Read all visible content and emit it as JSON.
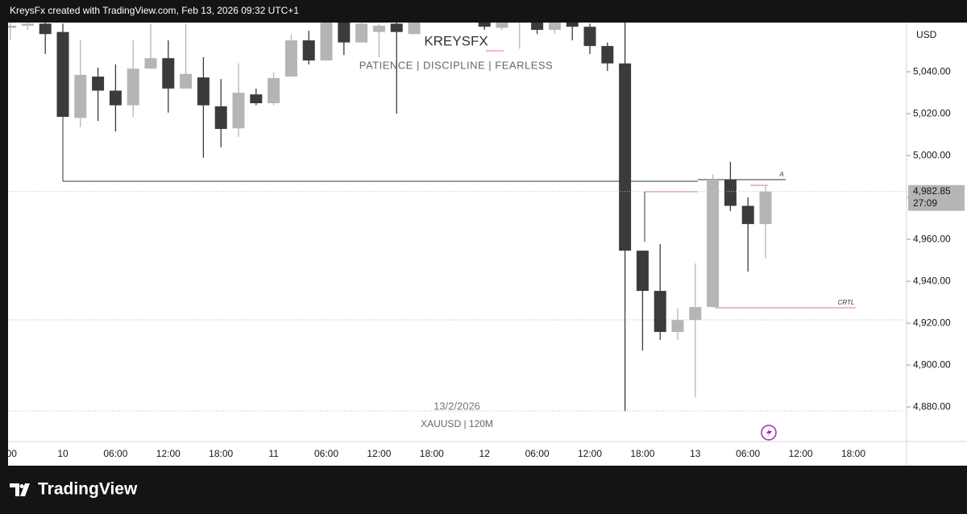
{
  "header": {
    "text": "KreysFx created with TradingView.com, Feb 13, 2026 09:32 UTC+1"
  },
  "footer": {
    "brand": "TradingView"
  },
  "chart_data": {
    "type": "candlestick",
    "title": "KREYSFX",
    "subtitle": "PATIENCE | DISCIPLINE | FEARLESS",
    "date_label": "13/2/2026",
    "symbol_label": "XAUUSD | 120M",
    "currency": "USD",
    "categories": [
      ":00",
      null,
      null,
      "10",
      null,
      null,
      "06:00",
      null,
      null,
      "12:00",
      null,
      null,
      "18:00",
      null,
      null,
      "11",
      null,
      null,
      "06:00",
      null,
      null,
      "12:00",
      null,
      null,
      "18:00",
      null,
      null,
      "12",
      null,
      null,
      "06:00",
      null,
      null,
      "12:00",
      null,
      null,
      "18:00",
      null,
      null,
      "13",
      null,
      null,
      "06:00",
      null,
      null,
      "12:00",
      null,
      null,
      "18:00"
    ],
    "open": [
      5061,
      5062,
      5063,
      5059,
      5018,
      5037.7,
      5031,
      5024,
      5041.5,
      5046.5,
      5032,
      5037.3,
      5023.5,
      5013,
      5029.2,
      5025,
      5037.7,
      5055,
      5045.4,
      5064,
      5054,
      5059,
      5063,
      5058,
      null,
      null,
      null,
      5064,
      5061,
      5064,
      5066,
      5060,
      5064,
      5061.5,
      5052.3,
      5044,
      4954.6,
      4935.4,
      4915.8,
      4921.5,
      4927.7,
      4988.5,
      4976,
      4967.3,
      null,
      null,
      null,
      null,
      null
    ],
    "high": [
      5064,
      5064,
      5064,
      5063,
      5055,
      5042,
      5043.5,
      5055,
      5063,
      5055,
      5063,
      5047,
      5036.5,
      5044,
      5032,
      5039.6,
      5057.7,
      5059.6,
      5066,
      5068,
      5066,
      5063,
      5066,
      5066,
      null,
      null,
      null,
      5066,
      5066,
      5066,
      5067,
      5066,
      5066,
      5063,
      5054,
      5063.5,
      4954.6,
      4957.7,
      4927,
      4948.5,
      4991,
      4997,
      4980,
      4986,
      null,
      null,
      null,
      null,
      null
    ],
    "low": [
      5055,
      5060,
      5048.5,
      5018.5,
      5013.5,
      5016.5,
      5011.5,
      5018.5,
      5041.5,
      5020.5,
      5032,
      4999,
      5004,
      5009,
      5024,
      5024,
      5037.7,
      5043.5,
      5045.4,
      5048,
      5054,
      5047,
      5020,
      5058,
      null,
      null,
      null,
      5060,
      5060,
      5051,
      5058,
      5058,
      5055,
      5048.5,
      5040.4,
      4878,
      4906.9,
      4912,
      4912,
      4884.6,
      4927.7,
      4973.5,
      4944.6,
      4951,
      null,
      null,
      null,
      null,
      null
    ],
    "close": [
      5062,
      5063,
      5058,
      5018.5,
      5038.5,
      5031,
      5024,
      5041.5,
      5046.5,
      5032,
      5039,
      5024,
      5012.7,
      5030,
      5025,
      5037,
      5055,
      5045.4,
      5064,
      5054,
      5063,
      5062,
      5059,
      5063.5,
      null,
      null,
      null,
      5061.5,
      5064,
      5065,
      5060,
      5064,
      5061.5,
      5052.3,
      5044,
      4954.6,
      4935.4,
      4915.8,
      4921.5,
      4927.7,
      4988.5,
      4976,
      4967.3,
      4982.85,
      null,
      null,
      null,
      null,
      null
    ],
    "up_color": "#b5b5b5",
    "down_color": "#3b3b3b",
    "ylim": [
      4863.5,
      5063.5
    ],
    "yticks": [
      {
        "value": 4880,
        "label": "4,880.00"
      },
      {
        "value": 4900,
        "label": "4,900.00"
      },
      {
        "value": 4920,
        "label": "4,920.00"
      },
      {
        "value": 4940,
        "label": "4,940.00"
      },
      {
        "value": 4960,
        "label": "4,960.00"
      },
      {
        "value": 4980,
        "label": "4,980.00"
      },
      {
        "value": 5000,
        "label": "5,000.00"
      },
      {
        "value": 5020,
        "label": "5,020.00"
      },
      {
        "value": 5040,
        "label": "5,040.00"
      }
    ],
    "last_price_label": "4,982.85",
    "countdown": "27:09",
    "annotations": [
      "A",
      "CRTL"
    ]
  }
}
